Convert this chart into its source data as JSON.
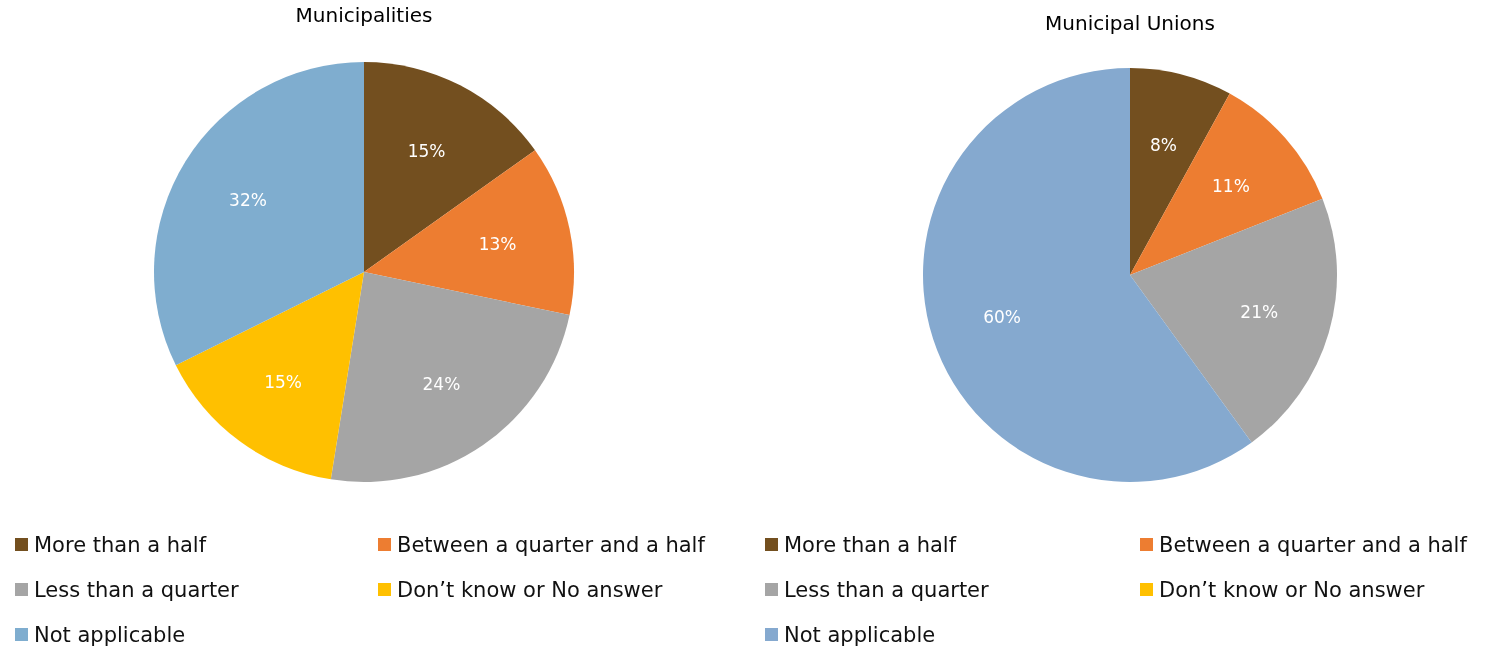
{
  "chart_data": [
    {
      "type": "pie",
      "title": "Municipalities",
      "categories": [
        "More than a half",
        "Between a quarter and a half",
        "Less than a quarter",
        "Don’t know or No answer",
        "Not applicable"
      ],
      "values": [
        15,
        13,
        24,
        15,
        32
      ],
      "colors": [
        "#734f1f",
        "#ed7d31",
        "#a5a5a5",
        "#ffc000",
        "#7fadcf"
      ],
      "value_labels": [
        "15%",
        "13%",
        "24%",
        "15%",
        "32%"
      ],
      "legend": "bottom"
    },
    {
      "type": "pie",
      "title": "Municipal Unions",
      "categories": [
        "More than a half",
        "Between a quarter and a half",
        "Less than a quarter",
        "Don’t know or No answer",
        "Not applicable"
      ],
      "values": [
        8,
        11,
        21,
        0,
        60
      ],
      "colors": [
        "#734f1f",
        "#ed7d31",
        "#a5a5a5",
        "#ffc000",
        "#85a9cf"
      ],
      "value_labels": [
        "8%",
        "11%",
        "21%",
        null,
        "60%"
      ],
      "legend": "bottom"
    }
  ]
}
